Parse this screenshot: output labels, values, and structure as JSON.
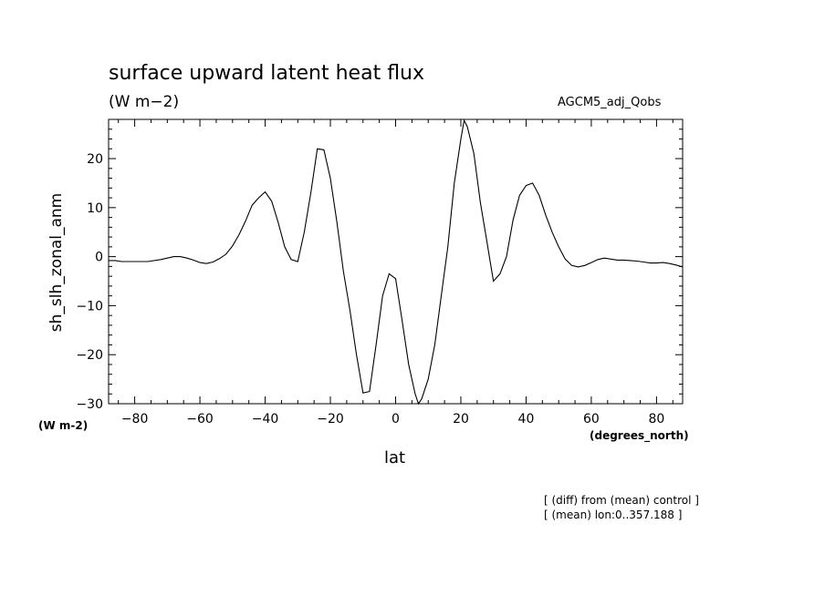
{
  "header": {
    "title": "surface upward latent heat flux",
    "units": "(W m−2)",
    "dataset": "AGCM5_adj_Qobs"
  },
  "footer": {
    "unit_left": "(W m-2)",
    "note1": "[ (diff) from (mean) control ]",
    "note2": "[ (mean) lon:0..357.188 ]"
  },
  "chart_data": {
    "type": "line",
    "title": "surface upward latent heat flux",
    "xlabel": "lat",
    "xunits": "(degrees_north)",
    "ylabel": "sh_slh_zonal_anm",
    "xlim": [
      -88,
      88
    ],
    "ylim": [
      -30,
      28
    ],
    "xticks": [
      -80,
      -60,
      -40,
      -20,
      0,
      20,
      40,
      60,
      80
    ],
    "yticks": [
      -30,
      -20,
      -10,
      0,
      10,
      20
    ],
    "grid": false,
    "series": [
      {
        "x": [
          -88,
          -86,
          -84,
          -80,
          -76,
          -72,
          -68,
          -66,
          -64,
          -62,
          -60,
          -58,
          -56,
          -54,
          -52,
          -50,
          -48,
          -46,
          -44,
          -42,
          -40,
          -38,
          -36,
          -34,
          -32,
          -30,
          -28,
          -26,
          -24,
          -22,
          -20,
          -18,
          -16,
          -14,
          -12,
          -10,
          -8,
          -6,
          -4,
          -2,
          0,
          2,
          4,
          6,
          7,
          8,
          10,
          12,
          14,
          16,
          18,
          20,
          21,
          22,
          24,
          26,
          28,
          29,
          30,
          32,
          34,
          36,
          38,
          40,
          42,
          44,
          46,
          48,
          50,
          52,
          54,
          56,
          58,
          60,
          62,
          64,
          66,
          68,
          70,
          72,
          74,
          76,
          78,
          80,
          82,
          84,
          86,
          88
        ],
        "values": [
          -0.8,
          -0.8,
          -1.0,
          -1.0,
          -1.0,
          -0.6,
          0.0,
          0.0,
          -0.3,
          -0.7,
          -1.2,
          -1.4,
          -1.1,
          -0.4,
          0.5,
          2.2,
          4.5,
          7.3,
          10.5,
          12.0,
          13.2,
          11.3,
          7.0,
          2.0,
          -0.6,
          -1.0,
          5.0,
          13.0,
          22.0,
          21.8,
          16.0,
          7.0,
          -3.0,
          -11.0,
          -20.0,
          -27.8,
          -27.5,
          -18.0,
          -8.0,
          -3.5,
          -4.5,
          -13.0,
          -22.0,
          -28.0,
          -30.0,
          -29.0,
          -25.0,
          -18.0,
          -8.0,
          2.0,
          15.0,
          24.0,
          27.8,
          26.5,
          21.0,
          11.0,
          3.0,
          -1.0,
          -5.0,
          -3.5,
          0.0,
          7.5,
          12.5,
          14.5,
          15.0,
          12.5,
          8.5,
          5.0,
          2.0,
          -0.5,
          -1.8,
          -2.1,
          -1.8,
          -1.2,
          -0.6,
          -0.3,
          -0.5,
          -0.7,
          -0.7,
          -0.8,
          -0.9,
          -1.1,
          -1.3,
          -1.3,
          -1.2,
          -1.4,
          -1.7,
          -2.1
        ]
      }
    ]
  }
}
